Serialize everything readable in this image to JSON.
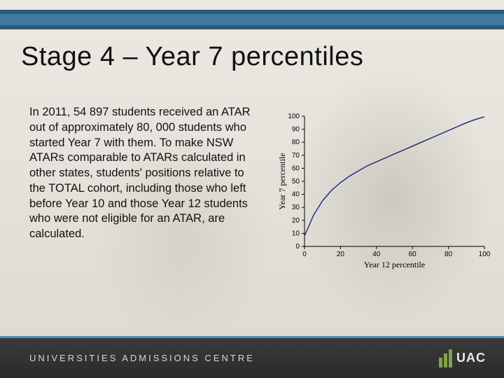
{
  "slide": {
    "title": "Stage 4 – Year 7 percentiles",
    "body": "In 2011, 54 897 students received an ATAR out of approximately 80, 000 students who started Year 7 with them.\nTo make NSW ATARs comparable to ATARs calculated in other states, students' positions relative to the TOTAL cohort, including those who left before Year 10 and those Year 12 students who were not eligible for an ATAR, are calculated."
  },
  "chart": {
    "type": "line",
    "xlabel": "Year 12 percentile",
    "ylabel": "Year 7 percentile",
    "xlim": [
      0,
      100
    ],
    "ylim": [
      0,
      100
    ],
    "xtick_step": 20,
    "ytick_step": 10,
    "x_points": [
      0,
      5,
      10,
      15,
      20,
      25,
      30,
      35,
      40,
      45,
      50,
      55,
      60,
      65,
      70,
      75,
      80,
      85,
      90,
      95,
      100
    ],
    "y_points": [
      8,
      24,
      35,
      43,
      49,
      54,
      58,
      62,
      65,
      68,
      71,
      74,
      77,
      80,
      83,
      86,
      89,
      92,
      95,
      97.5,
      99.5
    ],
    "line_color": "#1a237e",
    "line_width": 1.4,
    "axis_color": "#000000",
    "background_color": "transparent",
    "tick_fontsize": 10,
    "label_fontsize": 12
  },
  "footer": {
    "org": "UNIVERSITIES ADMISSIONS CENTRE",
    "logo_text": "UAC",
    "logo_bar_color": "#7fa34a"
  },
  "colors": {
    "band_outer": "#2d5a7a",
    "band_inner": "#3f7a9e",
    "footer_border": "#4d8fb3",
    "page_bg": "#e6e4dd"
  }
}
